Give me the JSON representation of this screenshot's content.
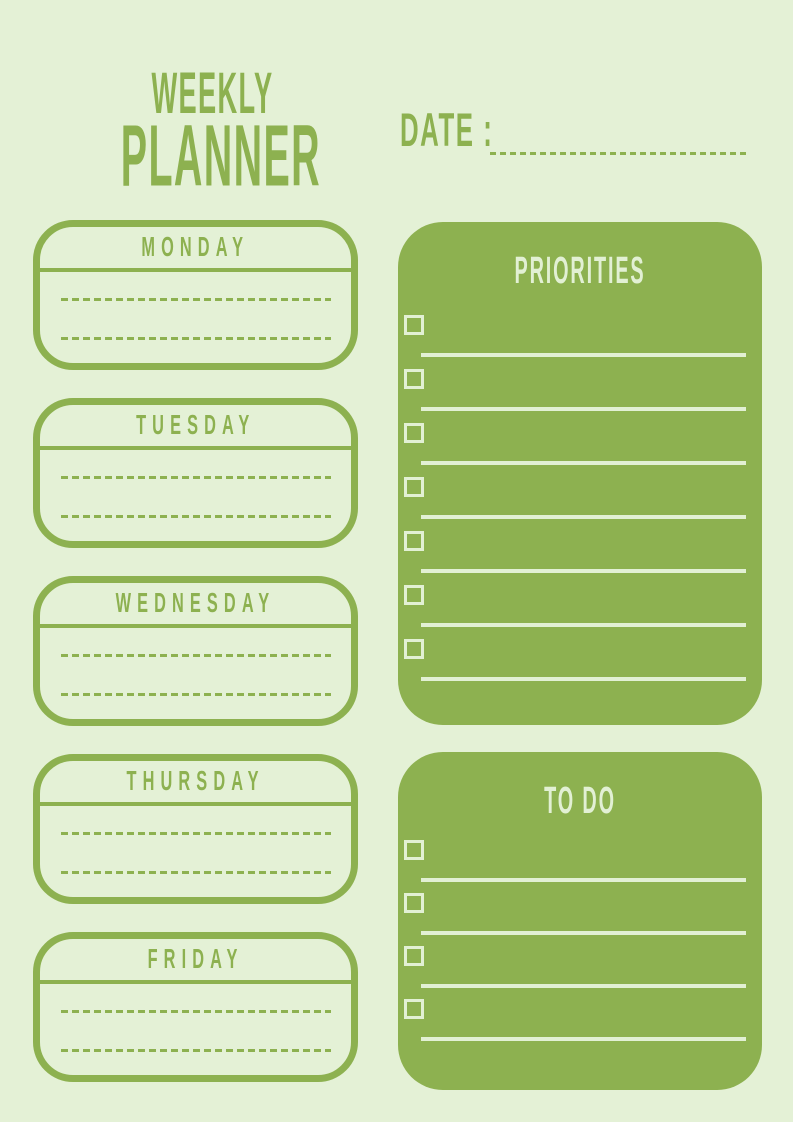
{
  "colors": {
    "green": "#8db150",
    "light_bg": "#e4f1d6",
    "panel_ink": "#e2f0d4"
  },
  "header": {
    "title_line1": "WEEKLY",
    "title_line2": "PLANNER",
    "date_label": "DATE :"
  },
  "days": [
    "MONDAY",
    "TUESDAY",
    "WEDNESDAY",
    "THURSDAY",
    "FRIDAY"
  ],
  "day_note_line_count": 2,
  "priorities": {
    "title": "PRIORITIES",
    "item_count": 7
  },
  "todo": {
    "title": "TO DO",
    "item_count": 4
  }
}
